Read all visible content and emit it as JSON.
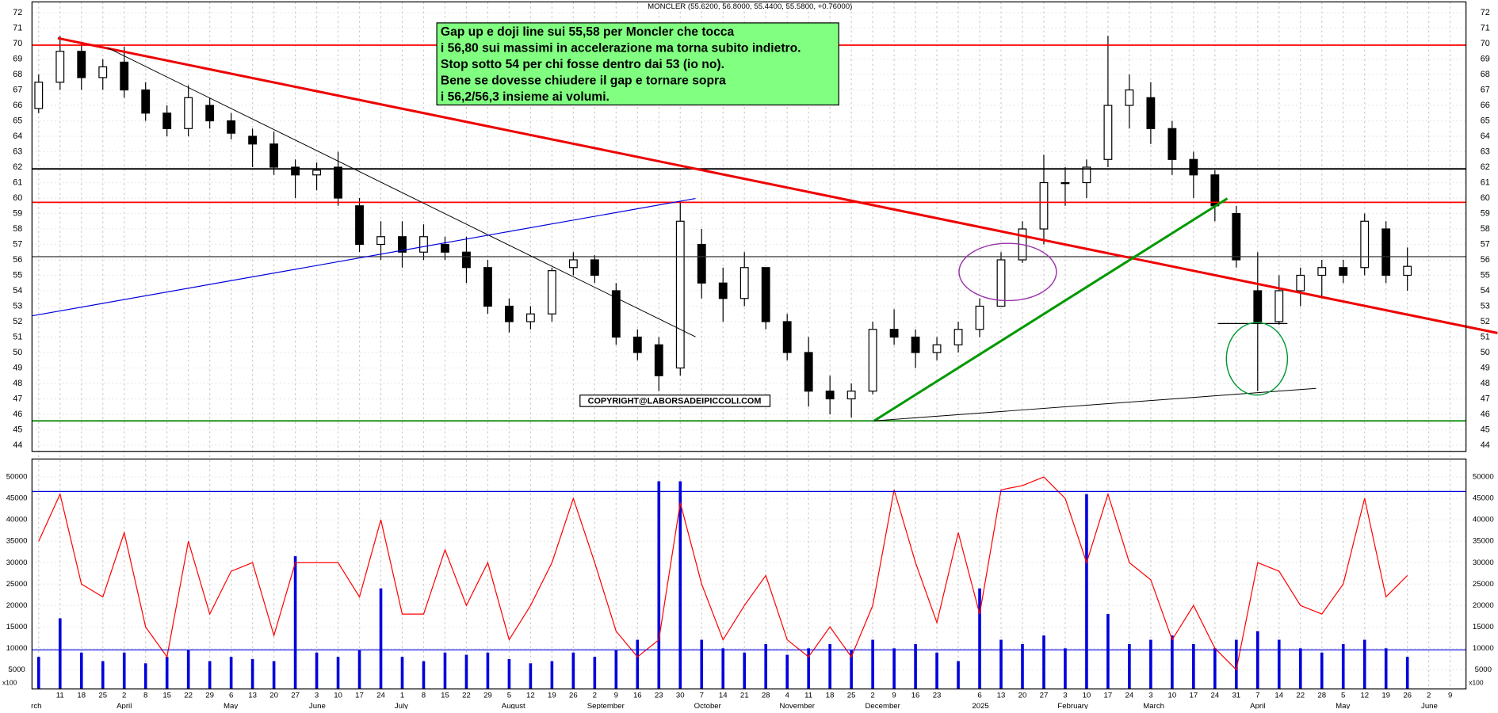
{
  "chart_data": {
    "type": "candlestick",
    "title": "MONCLER (55.6200, 56.8000, 55.4400, 55.5800, +0.76000)",
    "annotation": [
      "Gap up e doji line sui 55,58 per Moncler che tocca",
      "i 56,80 sui massimi in accelerazione ma torna subito indietro.",
      "Stop sotto  54 per chi fosse dentro dai 53 (io no).",
      "Bene se dovesse chiudere il gap e tornare sopra",
      "i 56,2/56,3 insieme ai volumi."
    ],
    "copyright": "COPYRIGHT@LABORSADEIPICCOLI.COM",
    "volume_unit": "x100",
    "categories": [
      null,
      "11",
      "18",
      "25",
      "2",
      "8",
      "15",
      "22",
      "29",
      "6",
      "13",
      "20",
      "27",
      "3",
      "10",
      "17",
      "24",
      "1",
      "8",
      "15",
      "22",
      "29",
      "5",
      "12",
      "19",
      "26",
      "2",
      "9",
      "16",
      "23",
      "30",
      "7",
      "14",
      "21",
      "28",
      "4",
      "11",
      "18",
      "25",
      "2",
      "9",
      "16",
      "23",
      null,
      "6",
      "13",
      "20",
      "27",
      "3",
      "10",
      "17",
      "24",
      "3",
      "10",
      "17",
      "24",
      "31",
      "7",
      "14",
      "22",
      "28",
      "5",
      "12",
      "19",
      "26",
      "2",
      "9"
    ],
    "month_labels": [
      "rch",
      null,
      null,
      null,
      "April",
      null,
      null,
      null,
      null,
      "May",
      null,
      null,
      null,
      "June",
      null,
      null,
      null,
      "July",
      null,
      null,
      null,
      null,
      "August",
      null,
      null,
      null,
      "September",
      null,
      null,
      null,
      null,
      "October",
      null,
      null,
      null,
      "November",
      null,
      null,
      null,
      "December",
      null,
      null,
      null,
      null,
      "2025",
      null,
      null,
      null,
      "February",
      null,
      null,
      null,
      "March",
      null,
      null,
      null,
      null,
      "April",
      null,
      null,
      null,
      "May",
      null,
      null,
      null,
      "June",
      null
    ],
    "open": [
      65.8,
      67.5,
      69.5,
      67.8,
      68.8,
      67,
      65.5,
      64.5,
      66,
      65,
      64,
      63.5,
      62,
      61.5,
      62,
      59.5,
      57,
      57.5,
      56.5,
      57,
      56.5,
      55.5,
      53,
      52,
      52.5,
      55.5,
      56,
      54,
      51,
      50.5,
      49,
      57,
      54.5,
      53.5,
      55.5,
      52,
      50,
      47.5,
      47,
      47.5,
      51.5,
      51,
      50,
      50.5,
      51.5,
      53,
      56,
      58,
      61,
      61,
      62.5,
      66,
      66.5,
      64.5,
      62.5,
      61.5,
      59,
      54,
      52,
      54,
      55,
      55.5,
      55.5,
      58,
      55,
      null,
      null
    ],
    "high": [
      68,
      70.5,
      70,
      69,
      69.8,
      67.5,
      66,
      67.3,
      66.5,
      65.5,
      64.5,
      64.3,
      62.5,
      62.3,
      63,
      60,
      58.5,
      58.5,
      58.3,
      57.5,
      57.5,
      56,
      53.5,
      53,
      55.5,
      56.5,
      56.3,
      54.5,
      51.5,
      51,
      59.8,
      58,
      55.5,
      56.5,
      55.5,
      52.5,
      51,
      48.5,
      48,
      52,
      52.8,
      51.5,
      51,
      52,
      53.5,
      56.5,
      58.5,
      62.8,
      62,
      62.5,
      70.5,
      68,
      67.5,
      65,
      63,
      61.8,
      59.5,
      56.5,
      55,
      55.5,
      56,
      56,
      59,
      58.5,
      56.8,
      null,
      null
    ],
    "low": [
      65.5,
      67,
      67,
      67,
      66.5,
      65,
      64,
      64,
      64.5,
      63.8,
      62,
      61.5,
      60,
      60.5,
      59.5,
      56.5,
      56,
      55.5,
      56,
      56,
      54.5,
      52.5,
      51.3,
      51.5,
      52,
      55,
      54.5,
      50.5,
      49.5,
      47.5,
      48.5,
      53.5,
      52,
      53,
      51.5,
      49.5,
      46.5,
      46,
      45.8,
      47.3,
      50.5,
      49,
      49.5,
      50,
      51,
      53,
      55.8,
      57,
      59.5,
      60,
      62,
      64.5,
      63.5,
      61.5,
      60,
      58.5,
      55.5,
      47.5,
      51.8,
      53,
      53.5,
      54.5,
      55,
      54.5,
      54,
      null,
      null
    ],
    "close": [
      67.5,
      69.5,
      67.8,
      68.5,
      67,
      65.5,
      64.5,
      66.5,
      65,
      64.2,
      63.5,
      62,
      61.5,
      61.8,
      60,
      57,
      57.5,
      56.5,
      57.5,
      56.5,
      55.5,
      53,
      52,
      52.5,
      55.3,
      56,
      55,
      51,
      50,
      48.5,
      58.5,
      54.5,
      53.5,
      55.5,
      52,
      50,
      47.5,
      47,
      47.5,
      51.5,
      51,
      50,
      50.5,
      51.5,
      53,
      56,
      58,
      61,
      61,
      62,
      66,
      67,
      64.5,
      62.5,
      61.5,
      59.5,
      56,
      52,
      54,
      55,
      55.5,
      55,
      58.5,
      55,
      55.58,
      null,
      null
    ],
    "up_color": "#ffffff",
    "down_color": "#000000",
    "ylim": [
      43.6,
      72.7
    ],
    "yticks": [
      44,
      45,
      46,
      47,
      48,
      49,
      50,
      51,
      52,
      53,
      54,
      55,
      56,
      57,
      58,
      59,
      60,
      61,
      62,
      63,
      64,
      65,
      66,
      67,
      68,
      69,
      70,
      71,
      72
    ],
    "grid": true,
    "volume": {
      "name": "volume",
      "color": "#0000dd",
      "values": [
        8000,
        17000,
        9000,
        7000,
        9000,
        6500,
        8000,
        9500,
        7000,
        8000,
        7500,
        7000,
        31500,
        9000,
        8000,
        9500,
        24000,
        8000,
        7000,
        9000,
        8500,
        9000,
        7500,
        6500,
        7000,
        9000,
        8000,
        9500,
        12000,
        49000,
        49000,
        12000,
        10000,
        9000,
        11000,
        8500,
        10000,
        11000,
        9500,
        12000,
        10000,
        11000,
        9000,
        7000,
        24000,
        12000,
        11000,
        13000,
        10000,
        46000,
        18000,
        11000,
        12000,
        13000,
        11000,
        10000,
        12000,
        14000,
        12000,
        10000,
        9000,
        11000,
        12000,
        10000,
        8000,
        null,
        null
      ]
    },
    "oscillator": {
      "name": "oscillator",
      "color": "#ff0000",
      "values": [
        35000,
        46000,
        25000,
        22000,
        37000,
        15000,
        8000,
        35000,
        18000,
        28000,
        30000,
        13000,
        30000,
        30000,
        30000,
        22000,
        40000,
        18000,
        18000,
        33000,
        20000,
        30000,
        12000,
        20000,
        30000,
        45000,
        30000,
        14000,
        8000,
        12000,
        44000,
        25000,
        12000,
        20000,
        27000,
        12000,
        8000,
        15000,
        8000,
        20000,
        47000,
        30000,
        16000,
        37000,
        18000,
        47000,
        48000,
        50000,
        45000,
        30000,
        46000,
        30000,
        26000,
        12000,
        20000,
        10000,
        5000,
        30000,
        28000,
        20000,
        18000,
        25000,
        45000,
        22000,
        27000,
        null,
        null
      ]
    },
    "y2lim": [
      500,
      54200
    ],
    "y2ticks": [
      5000,
      10000,
      15000,
      20000,
      25000,
      30000,
      35000,
      40000,
      45000,
      50000
    ]
  }
}
